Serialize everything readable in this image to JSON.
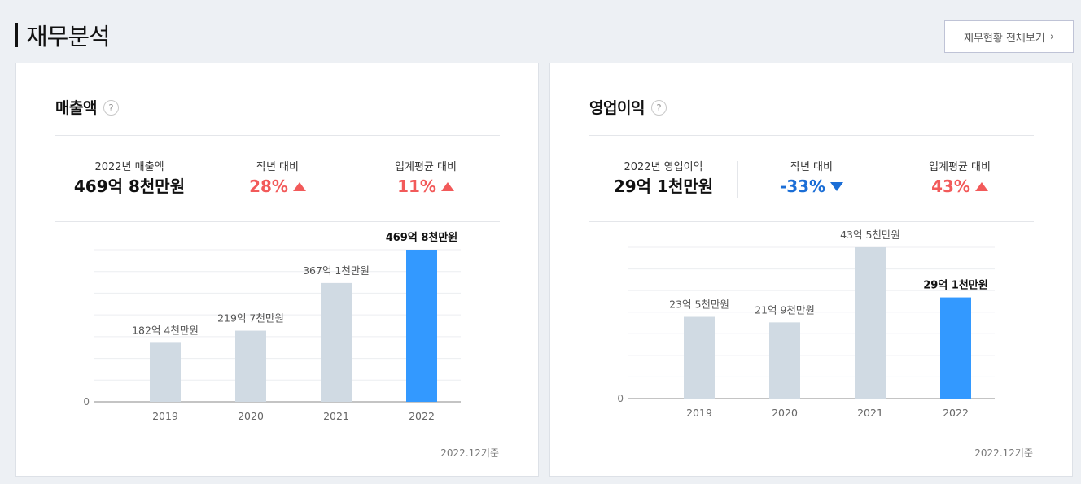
{
  "page": {
    "title": "재무분석",
    "view_all": "재무현황 전체보기"
  },
  "panels": [
    {
      "title": "매출액",
      "help": "?",
      "summary": [
        {
          "label": "2022년 매출액",
          "value": "469억 8천만원",
          "trend": "none"
        },
        {
          "label": "작년 대비",
          "value": "28%",
          "trend": "up"
        },
        {
          "label": "업계평균 대비",
          "value": "11%",
          "trend": "up"
        }
      ],
      "basis": "2022.12기준"
    },
    {
      "title": "영업이익",
      "help": "?",
      "summary": [
        {
          "label": "2022년 영업이익",
          "value": "29억 1천만원",
          "trend": "none"
        },
        {
          "label": "작년 대비",
          "value": "-33%",
          "trend": "down"
        },
        {
          "label": "업계평균 대비",
          "value": "43%",
          "trend": "up"
        }
      ],
      "basis": "2022.12기준"
    }
  ],
  "colors": {
    "bar_default": "#d0dae3",
    "bar_highlight": "#3399ff",
    "up": "#f25a5a",
    "down": "#1b6ed6"
  },
  "chart_data": [
    {
      "type": "bar",
      "title": "매출액",
      "categories": [
        "2019",
        "2020",
        "2021",
        "2022"
      ],
      "values": [
        182.4,
        219.7,
        367.1,
        469.8
      ],
      "data_labels": [
        "182억 4천만원",
        "219억 7천만원",
        "367억 1천만원",
        "469억 8천만원"
      ],
      "highlight_index": 3,
      "ylim": [
        0,
        469.8
      ],
      "y_tick_label": "0",
      "grid": true
    },
    {
      "type": "bar",
      "title": "영업이익",
      "categories": [
        "2019",
        "2020",
        "2021",
        "2022"
      ],
      "values": [
        23.5,
        21.9,
        43.5,
        29.1
      ],
      "data_labels": [
        "23억 5천만원",
        "21억 9천만원",
        "43억 5천만원",
        "29억 1천만원"
      ],
      "highlight_index": 3,
      "ylim": [
        0,
        43.5
      ],
      "y_tick_label": "0",
      "grid": true
    }
  ]
}
